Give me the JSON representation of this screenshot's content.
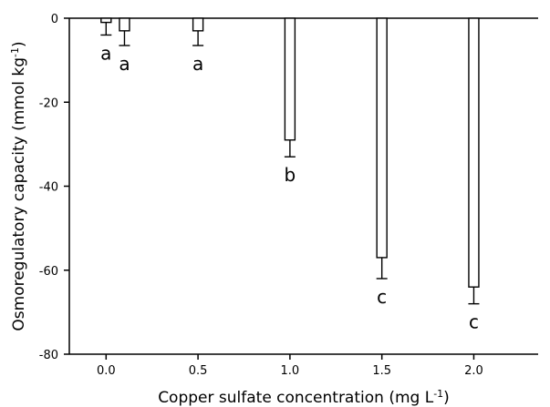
{
  "chart_data": {
    "type": "bar",
    "xlabel": "Copper sulfate concentration (mg L",
    "xlabel_sup": "-1",
    "xlabel_end": ")",
    "ylabel": "Osmoregulatory capacity (mmol kg",
    "ylabel_sup": "-1",
    "ylabel_end": ")",
    "xlim": [
      -0.2,
      2.35
    ],
    "ylim": [
      -80,
      0
    ],
    "xticks": [
      0.0,
      0.5,
      1.0,
      1.5,
      2.0
    ],
    "xtick_labels": [
      "0.0",
      "0.5",
      "1.0",
      "1.5",
      "2.0"
    ],
    "yticks": [
      0,
      -20,
      -40,
      -60,
      -80
    ],
    "ytick_labels": [
      "0",
      "-20",
      "-40",
      "-60",
      "-80"
    ],
    "bars": [
      {
        "x": 0.0,
        "value": -1,
        "error": 3,
        "letter": "a"
      },
      {
        "x": 0.1,
        "value": -3,
        "error": 3.5,
        "letter": "a"
      },
      {
        "x": 0.5,
        "value": -3,
        "error": 3.5,
        "letter": "a"
      },
      {
        "x": 1.0,
        "value": -29,
        "error": 4,
        "letter": "b"
      },
      {
        "x": 1.5,
        "value": -57,
        "error": 5,
        "letter": "c"
      },
      {
        "x": 2.0,
        "value": -64,
        "error": 4,
        "letter": "c"
      }
    ]
  }
}
